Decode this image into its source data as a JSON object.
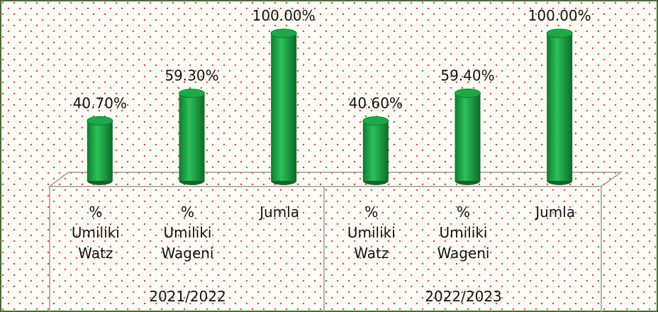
{
  "chart_data": {
    "type": "bar",
    "categories": [
      "% Umiliki Watz",
      "% Umiliki Wageni",
      "Jumla",
      "% Umiliki Watz",
      "% Umiliki Wageni",
      "Jumla"
    ],
    "groups": [
      "2021/2022",
      "2022/2023"
    ],
    "values": [
      40.7,
      59.3,
      100,
      40.6,
      59.4,
      100
    ],
    "value_labels": [
      "40.70%",
      "59.30%",
      "100.00%",
      "40.60%",
      "59.40%",
      "100.00%"
    ],
    "color": "#1fa84a",
    "ylim": [
      0,
      100
    ]
  }
}
